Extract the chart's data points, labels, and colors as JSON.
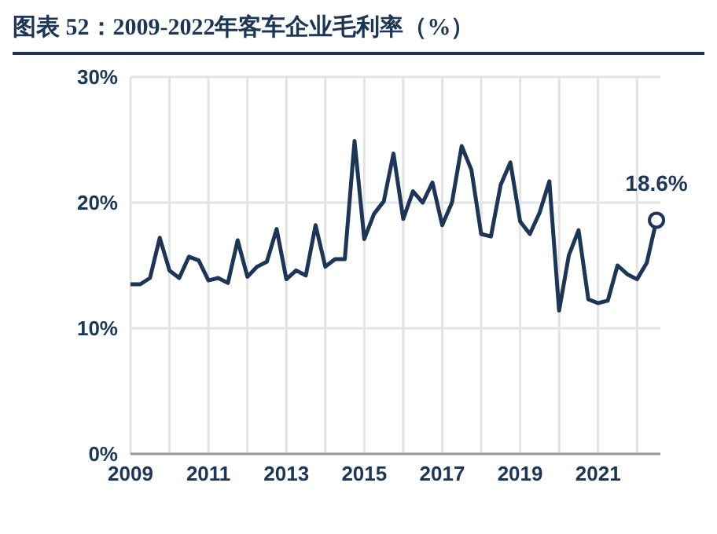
{
  "chart_data": {
    "type": "line",
    "title": "图表 52：2009-2022年客车企业毛利率（%）",
    "x": [
      2009,
      2009.25,
      2009.5,
      2009.75,
      2010,
      2010.25,
      2010.5,
      2010.75,
      2011,
      2011.25,
      2011.5,
      2011.75,
      2012,
      2012.25,
      2012.5,
      2012.75,
      2013,
      2013.25,
      2013.5,
      2013.75,
      2014,
      2014.25,
      2014.5,
      2014.75,
      2015,
      2015.25,
      2015.5,
      2015.75,
      2016,
      2016.25,
      2016.5,
      2016.75,
      2017,
      2017.25,
      2017.5,
      2017.75,
      2018,
      2018.25,
      2018.5,
      2018.75,
      2019,
      2019.25,
      2019.5,
      2019.75,
      2020,
      2020.25,
      2020.5,
      2020.75,
      2021,
      2021.25,
      2021.5,
      2021.75,
      2022,
      2022.25,
      2022.5
    ],
    "series": [
      {
        "color": "#1d3557",
        "values": [
          13.5,
          13.5,
          14.0,
          17.2,
          14.6,
          14.0,
          15.7,
          15.4,
          13.8,
          14.0,
          13.6,
          17.0,
          14.1,
          14.9,
          15.3,
          17.9,
          13.9,
          14.6,
          14.2,
          18.2,
          14.9,
          15.5,
          15.5,
          24.9,
          17.1,
          19.1,
          20.1,
          23.9,
          18.7,
          20.9,
          20.0,
          21.6,
          18.2,
          20.0,
          24.5,
          22.6,
          17.5,
          17.3,
          21.4,
          23.2,
          18.5,
          17.5,
          19.2,
          21.7,
          11.4,
          15.8,
          17.8,
          12.3,
          12.0,
          12.2,
          15.0,
          14.3,
          13.9,
          15.2,
          18.6
        ]
      }
    ],
    "xlim": [
      2009,
      2022.6
    ],
    "xticks": [
      2009,
      {
        "value": 2010,
        "label": null
      },
      2011,
      {
        "value": 2012,
        "label": null
      },
      2013,
      {
        "value": 2014,
        "label": null
      },
      2015,
      {
        "value": 2016,
        "label": null
      },
      2017,
      {
        "value": 2018,
        "label": null
      },
      2019,
      {
        "value": 2020,
        "label": null
      },
      2021,
      {
        "value": 2022,
        "label": null
      }
    ],
    "ylim": [
      0,
      30
    ],
    "yticks": [
      {
        "value": 0,
        "label": "0%"
      },
      {
        "value": 10,
        "label": "10%"
      },
      {
        "value": 20,
        "label": "20%"
      },
      {
        "value": 30,
        "label": "30%"
      }
    ],
    "grid": true,
    "legend": false,
    "marker": "none",
    "line_style": "solid",
    "annotations": [
      {
        "text": "18.6%",
        "x": 2022.5,
        "y": 18.6
      }
    ]
  }
}
